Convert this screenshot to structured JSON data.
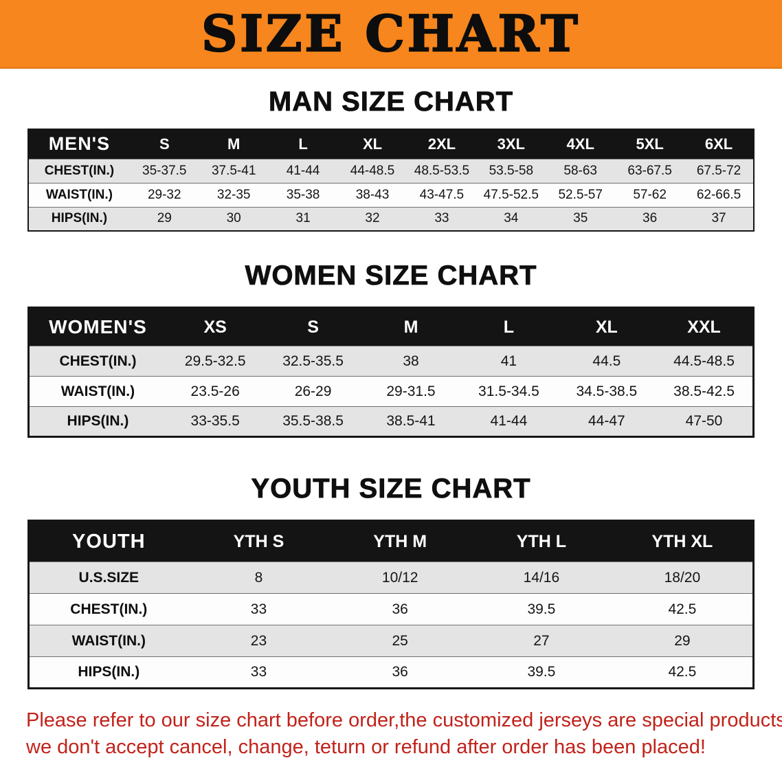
{
  "banner": {
    "title": "SIZE CHART"
  },
  "chart_data": [
    {
      "type": "table",
      "title": "MAN SIZE CHART",
      "header": [
        "MEN'S",
        "S",
        "M",
        "L",
        "XL",
        "2XL",
        "3XL",
        "4XL",
        "5XL",
        "6XL"
      ],
      "rows": [
        [
          "CHEST(IN.)",
          "35-37.5",
          "37.5-41",
          "41-44",
          "44-48.5",
          "48.5-53.5",
          "53.5-58",
          "58-63",
          "63-67.5",
          "67.5-72"
        ],
        [
          "WAIST(IN.)",
          "29-32",
          "32-35",
          "35-38",
          "38-43",
          "43-47.5",
          "47.5-52.5",
          "52.5-57",
          "57-62",
          "62-66.5"
        ],
        [
          "HIPS(IN.)",
          "29",
          "30",
          "31",
          "32",
          "33",
          "34",
          "35",
          "36",
          "37"
        ]
      ]
    },
    {
      "type": "table",
      "title": "WOMEN SIZE CHART",
      "header": [
        "WOMEN'S",
        "XS",
        "S",
        "M",
        "L",
        "XL",
        "XXL"
      ],
      "rows": [
        [
          "CHEST(IN.)",
          "29.5-32.5",
          "32.5-35.5",
          "38",
          "41",
          "44.5",
          "44.5-48.5"
        ],
        [
          "WAIST(IN.)",
          "23.5-26",
          "26-29",
          "29-31.5",
          "31.5-34.5",
          "34.5-38.5",
          "38.5-42.5"
        ],
        [
          "HIPS(IN.)",
          "33-35.5",
          "35.5-38.5",
          "38.5-41",
          "41-44",
          "44-47",
          "47-50"
        ]
      ]
    },
    {
      "type": "table",
      "title": "YOUTH SIZE CHART",
      "header": [
        "YOUTH",
        "YTH S",
        "YTH M",
        "YTH L",
        "YTH XL"
      ],
      "rows": [
        [
          "U.S.SIZE",
          "8",
          "10/12",
          "14/16",
          "18/20"
        ],
        [
          "CHEST(IN.)",
          "33",
          "36",
          "39.5",
          "42.5"
        ],
        [
          "WAIST(IN.)",
          "23",
          "25",
          "27",
          "29"
        ],
        [
          "HIPS(IN.)",
          "33",
          "36",
          "39.5",
          "42.5"
        ]
      ]
    }
  ],
  "footer": {
    "line1": "Please refer to our size chart before order,the customized jerseys are special products,",
    "line2": "we don't accept cancel, change, teturn or refund after order has been placed!"
  },
  "colors": {
    "banner_bg": "#f6861d",
    "table_header_bg": "#141414",
    "row_shade": "#e4e4e4",
    "footer_text": "#c1221a"
  }
}
